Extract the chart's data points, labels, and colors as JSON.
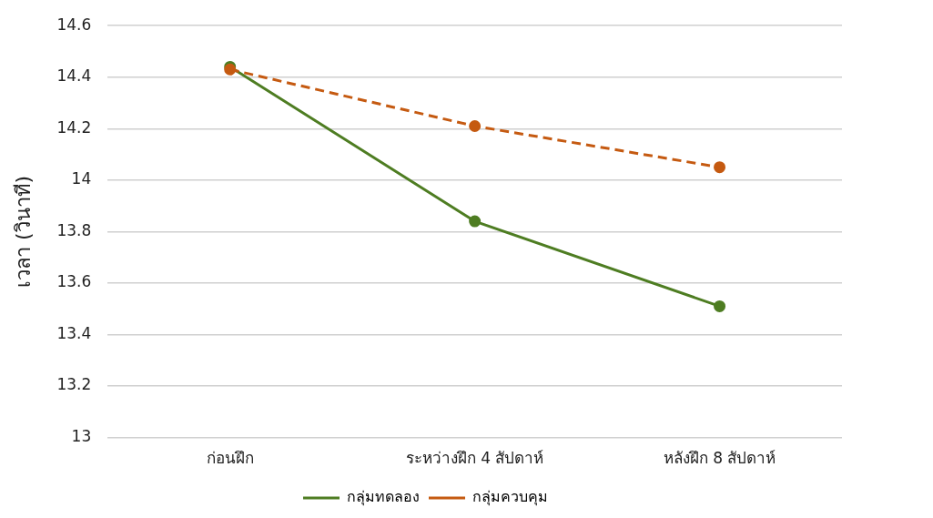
{
  "chart_data": {
    "type": "line",
    "ylabel": "เวลา (วินาที)",
    "categories": [
      "ก่อนฝึก",
      "ระหว่างฝึก 4 สัปดาห์",
      "หลังฝึก 8 สัปดาห์"
    ],
    "series": [
      {
        "name": "กลุ่มทดลอง",
        "color": "#4e7d22",
        "values": [
          14.44,
          13.84,
          13.51
        ],
        "line_style": "solid"
      },
      {
        "name": "กลุ่มควบคุม",
        "color": "#c55a11",
        "values": [
          14.43,
          14.21,
          14.05
        ],
        "line_style": "dashed"
      }
    ],
    "ylim": [
      13,
      14.6
    ],
    "yticks": [
      13,
      13.2,
      13.4,
      13.6,
      13.8,
      14,
      14.2,
      14.4,
      14.6
    ],
    "grid": "y",
    "legend": "bottom",
    "marker": "circle"
  }
}
